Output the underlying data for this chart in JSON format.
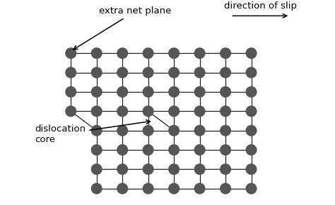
{
  "bg_color": "#ffffff",
  "atom_color": "#555555",
  "line_color": "#222222",
  "label_extra_net_plane": "extra net plane",
  "label_direction_of_slip": "direction of slip",
  "label_dislocation_core": "dislocation\ncore",
  "font_size": 9.5,
  "atom_r": 0.22
}
